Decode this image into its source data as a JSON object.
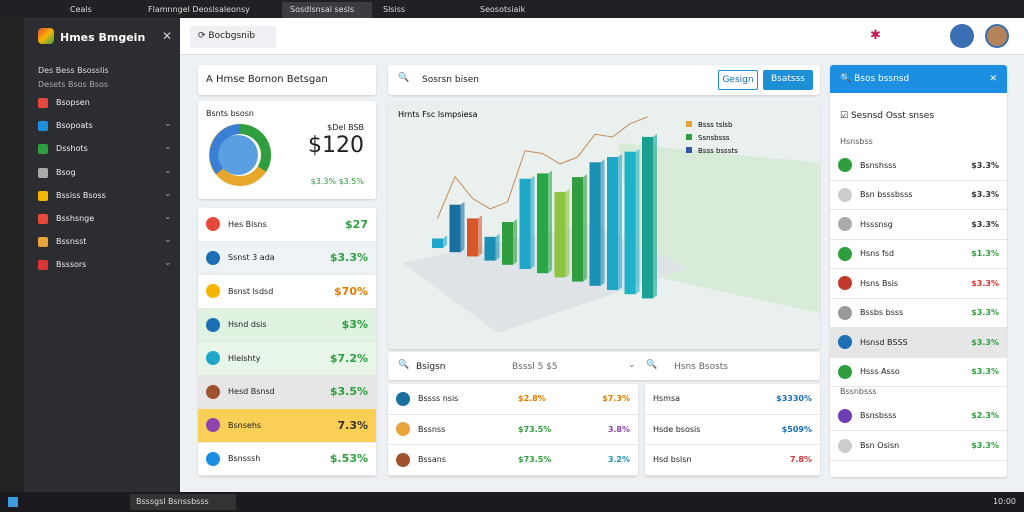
{
  "browser": {
    "tabs": [
      "Ceals",
      "Flamnngel Deoslsaleonsy",
      "Sosdlsnsal sesls",
      "Slsiss",
      "Seosotsiaik"
    ]
  },
  "sidebar": {
    "app_name": "Hmes Bmgein",
    "lines": [
      "Des Bess Bsosslis",
      "Desets Bsos Bsos"
    ],
    "items": [
      "Bsopsen",
      "Bsopoats",
      "Dsshots",
      "Bsog",
      "Bssiss Bsoss",
      "Bsshsnge",
      "Bssnsst",
      "Bsssors"
    ]
  },
  "header": {
    "search": "Bocbgsnib"
  },
  "summary": {
    "title": "A Hmse Bornon Betsgan",
    "card_label": "Bsnts bsosn",
    "big_small": "$Del BSB",
    "big": "$120",
    "foot": "$3.3% $3.5%"
  },
  "left_list": [
    {
      "name": "Hes Bisns",
      "value": "$27",
      "color": "#2e9e3e"
    },
    {
      "name": "Ssnst 3 ada",
      "value": "$3.3%",
      "color": "#2e9e3e"
    },
    {
      "name": "Bsnst lsdsd",
      "value": "$70%",
      "color": "#e07b00"
    },
    {
      "name": "Hsnd dsis",
      "value": "$3%",
      "color": "#2e9e3e"
    },
    {
      "name": "Hlelshty",
      "value": "$7.2%",
      "color": "#2e9e3e"
    },
    {
      "name": "Hesd Bsnsd",
      "value": "$3.5%",
      "color": "#2e9e3e"
    },
    {
      "name": "Bsnsehs",
      "value": "7.3%",
      "color": "#333333"
    },
    {
      "name": "Bsnsssh",
      "value": "$.53%",
      "color": "#2e9e3e"
    }
  ],
  "search_bar": {
    "placeholder": "Sosrsn bisen",
    "buttons": [
      "Gesign",
      "Bsatsss"
    ]
  },
  "main_chart": {
    "title": "Hrnts Fsc Ismpsiesa",
    "legend": [
      {
        "name": "Bsss tslsb",
        "color": "#e8a33a"
      },
      {
        "name": "Ssnsbsss",
        "color": "#2e9e3e"
      },
      {
        "name": "Bsss bsssts",
        "color": "#3455a8"
      }
    ],
    "values": [
      10,
      50,
      40,
      25,
      45,
      95,
      105,
      90,
      110,
      130,
      140,
      150,
      170
    ],
    "colors": [
      "#1ea7c9",
      "#1a6fa0",
      "#d8572a",
      "#1c8fb5",
      "#2e9e3e",
      "#1ea7c9",
      "#27a844",
      "#8cc63f",
      "#2e9e3e",
      "#1c8fb5",
      "#1ea7c9",
      "#1fb3c9",
      "#1aa090"
    ]
  },
  "bottom": {
    "search": "Bsigsn",
    "dropdown": "Bsssl 5 $5",
    "right_search": "Hsns Bsosts",
    "rows": [
      {
        "name": "Bssss nsis",
        "a": "$2.8%",
        "b": "$7.3%",
        "a_color": "#e07b00",
        "b_color": "#e07b00"
      },
      {
        "name": "Bssnss",
        "a": "$73.5%",
        "b": "3.8%",
        "a_color": "#2e9e3e",
        "b_color": "#8e44ad"
      },
      {
        "name": "Bssans",
        "a": "$73.5%",
        "b": "3.2%",
        "a_color": "#2e9e3e",
        "b_color": "#1c8fb5"
      }
    ],
    "right_rows": [
      {
        "name": "Hsmsa",
        "value": "$3330%",
        "color": "#1c6fb5"
      },
      {
        "name": "Hsde bsosis",
        "value": "$509%",
        "color": "#1c6fb5"
      },
      {
        "name": "Hsd bslsn",
        "value": "7.8%",
        "color": "#d33333"
      }
    ]
  },
  "right_panel": {
    "header": "Bsos bssnsd",
    "section": "Sesnsd Osst snses",
    "group1": "Hsnsbss",
    "rows1": [
      {
        "name": "Bsnshsss",
        "value": "$3.3%",
        "color": "#333333"
      },
      {
        "name": "Bsn bsssbsss",
        "value": "$3.3%",
        "color": "#333333"
      },
      {
        "name": "Hsssnsg",
        "value": "$3.3%",
        "color": "#333333"
      },
      {
        "name": "Hsns fsd",
        "value": "$1.3%",
        "color": "#2e9e3e"
      },
      {
        "name": "Hsns Bsis",
        "value": "$3.3%",
        "color": "#d33333"
      },
      {
        "name": "Bssbs bsss",
        "value": "$3.3%",
        "color": "#2e9e3e"
      },
      {
        "name": "Hsnsd BSSS",
        "value": "$3.3%",
        "color": "#2e9e3e"
      },
      {
        "name": "Hsss Asso",
        "value": "$3.3%",
        "color": "#2e9e3e"
      }
    ],
    "group2": "Bssnbsss",
    "rows2": [
      {
        "name": "Bsnsbsss",
        "value": "$2.3%",
        "color": "#2e9e3e"
      },
      {
        "name": "Bsn Osisn",
        "value": "$3.3%",
        "color": "#2e9e3e"
      }
    ]
  },
  "taskbar": {
    "app": "Bsssgsl Bsnssbsss",
    "time": "10:00"
  }
}
